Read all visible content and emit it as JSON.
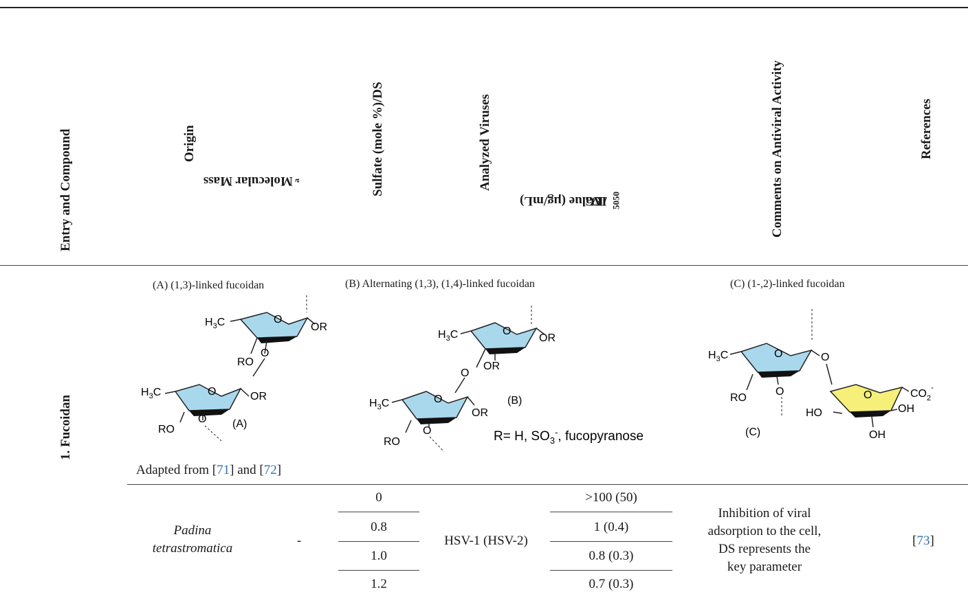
{
  "headers": {
    "entry": "Entry and Compound",
    "origin": "Origin",
    "mass": "Molecular Mass",
    "mass_sup": "a",
    "sulfate": "Sulfate (mole %)/DS",
    "viruses": "Analyzed Viruses",
    "ic_pre": "IC",
    "ic_sub1": "50",
    "ic_mid": "/EC",
    "ic_sub2": "50",
    "ic_post": "  Value (µg/mL)",
    "comments": "Comments on Antiviral Activity",
    "references": "References"
  },
  "entry_label": "1. Fucoidan",
  "structures": {
    "a_caption": "(A) (1,3)-linked fucoidan",
    "b_caption": "(B) Alternating (1,3), (1,4)-linked fucoidan",
    "c_caption": "(C) (1-,2)-linked fucoidan",
    "r_def_pre": "R= H, SO",
    "r_def_sub": "3",
    "r_def_sup": "-",
    "r_def_post": ", fucopyranose",
    "adapted_pre": "Adapted from [",
    "ref1": "71",
    "adapted_mid": "] and [",
    "ref2": "72",
    "adapted_post": "]",
    "labels": {
      "h3c": "H",
      "h3c_sub": "3",
      "h3c_c": "C",
      "o": "O",
      "or": "OR",
      "ro": "RO",
      "ho": "HO",
      "oh": "OH",
      "co2": "CO",
      "co2_sub": "2",
      "co2_sup": "-",
      "tag_a": "(A)",
      "tag_b": "(B)",
      "tag_c": "(C)"
    }
  },
  "row": {
    "origin_line1": "Padina",
    "origin_line2": "tetrastromatica",
    "mass": "-",
    "sulfate": [
      "0",
      "0.8",
      "1.0",
      "1.2"
    ],
    "viruses": "HSV-1 (HSV-2)",
    "ic50": [
      ">100 (50)",
      "1 (0.4)",
      "0.8 (0.3)",
      "0.7 (0.3)"
    ],
    "comments": [
      "Inhibition of viral",
      "adsorption to the cell,",
      "DS represents the",
      "key parameter"
    ],
    "ref": "73"
  }
}
